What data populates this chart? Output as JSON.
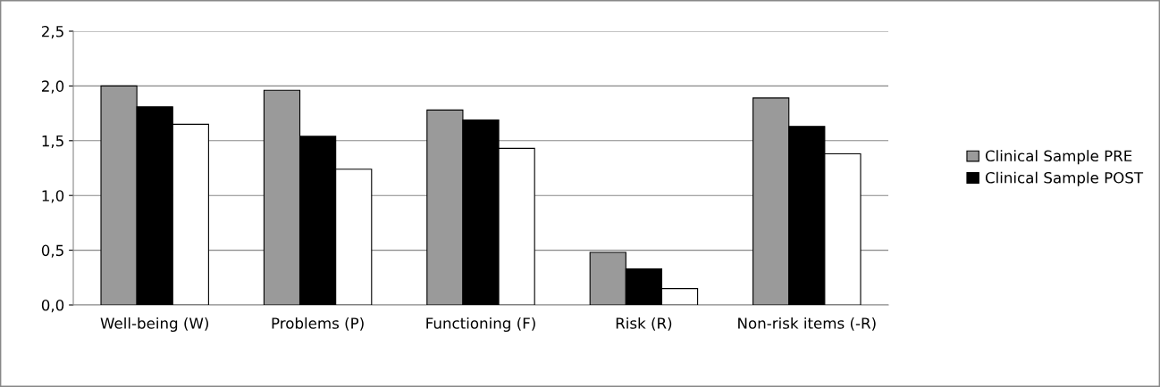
{
  "chart_data": {
    "type": "bar",
    "categories": [
      "Well-being (W)",
      "Problems (P)",
      "Functioning (F)",
      "Risk (R)",
      "Non-risk items (-R)"
    ],
    "series": [
      {
        "name": "Clinical Sample PRE",
        "color": "#9a9a9a",
        "values": [
          2.0,
          1.96,
          1.78,
          0.48,
          1.89
        ]
      },
      {
        "name": "Clinical Sample POST",
        "color": "#000000",
        "values": [
          1.81,
          1.54,
          1.69,
          0.33,
          1.63
        ]
      },
      {
        "color": "#ffffff",
        "values": [
          1.65,
          1.24,
          1.43,
          0.15,
          1.38
        ]
      }
    ],
    "ylim": [
      0,
      2.5
    ],
    "yticks": [
      {
        "value": 0,
        "label": "0,0"
      },
      {
        "value": 0.5,
        "label": "0,5"
      },
      {
        "value": 1.0,
        "label": "1,0"
      },
      {
        "value": 1.5,
        "label": "1,5"
      },
      {
        "value": 2.0,
        "label": "2,0"
      },
      {
        "value": 2.5,
        "label": "2,5"
      }
    ],
    "grid": "y",
    "legend": "right"
  }
}
